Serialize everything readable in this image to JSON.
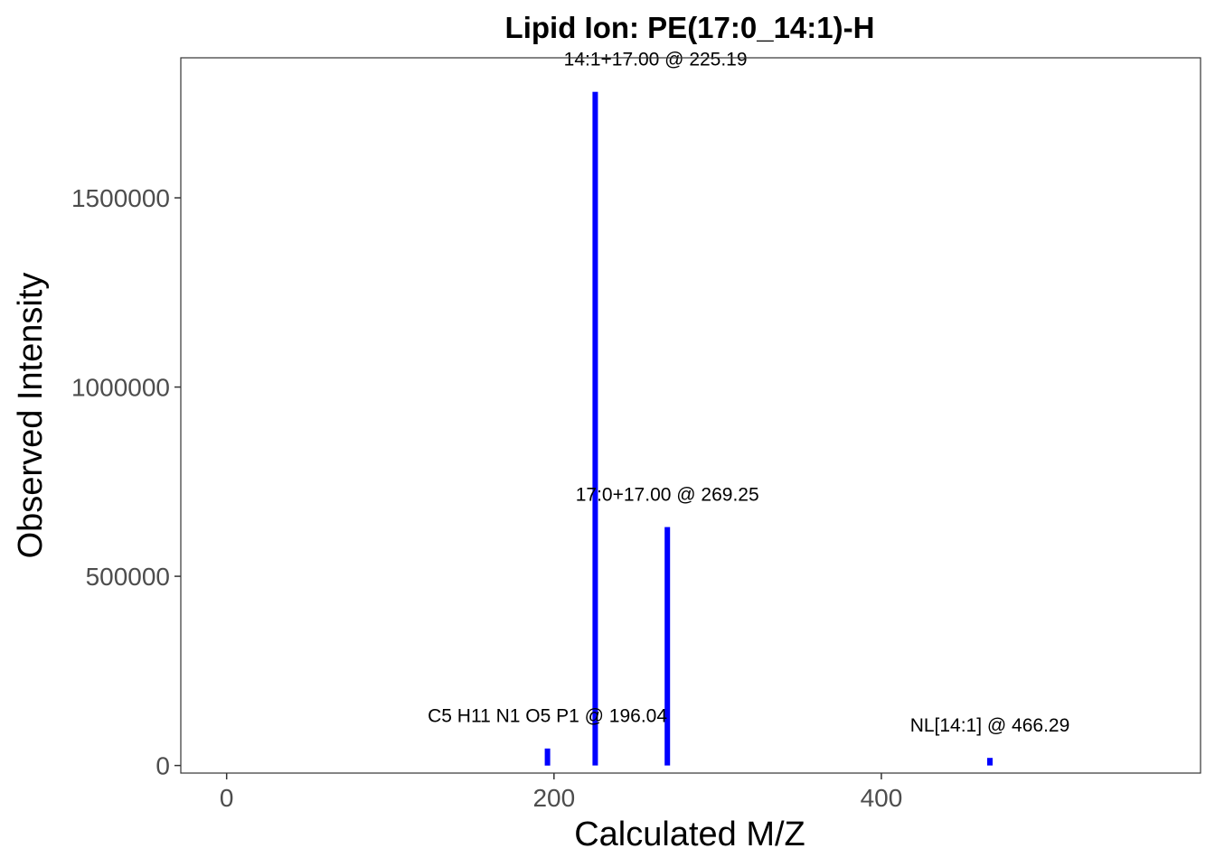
{
  "chart_data": {
    "type": "bar",
    "title": "Lipid Ion: PE(17:0_14:1)-H",
    "xlabel": "Calculated M/Z",
    "ylabel": "Observed Intensity",
    "xlim": [
      -28,
      595
    ],
    "ylim": [
      -20000,
      1870000
    ],
    "x_ticks": [
      {
        "value": 0,
        "label": "0"
      },
      {
        "value": 200,
        "label": "200"
      },
      {
        "value": 400,
        "label": "400"
      }
    ],
    "y_ticks": [
      {
        "value": 0,
        "label": "0"
      },
      {
        "value": 500000,
        "label": "500000"
      },
      {
        "value": 1000000,
        "label": "1000000"
      },
      {
        "value": 1500000,
        "label": "1500000"
      }
    ],
    "bar_color": "#0000ff",
    "grid": false,
    "peaks": [
      {
        "x": 196.04,
        "y": 45000,
        "label": "C5 H11 N1 O5 P1 @ 196.04",
        "label_x": 196.04,
        "label_y": 115000
      },
      {
        "x": 225.19,
        "y": 1780000,
        "label": "14:1+17.00 @ 225.19",
        "label_x": 262,
        "label_y": 1850000
      },
      {
        "x": 269.25,
        "y": 630000,
        "label": "17:0+17.00 @ 269.25",
        "label_x": 269.25,
        "label_y": 700000
      },
      {
        "x": 466.29,
        "y": 20000,
        "label": "NL[14:1] @ 466.29",
        "label_x": 466.29,
        "label_y": 90000
      }
    ]
  }
}
